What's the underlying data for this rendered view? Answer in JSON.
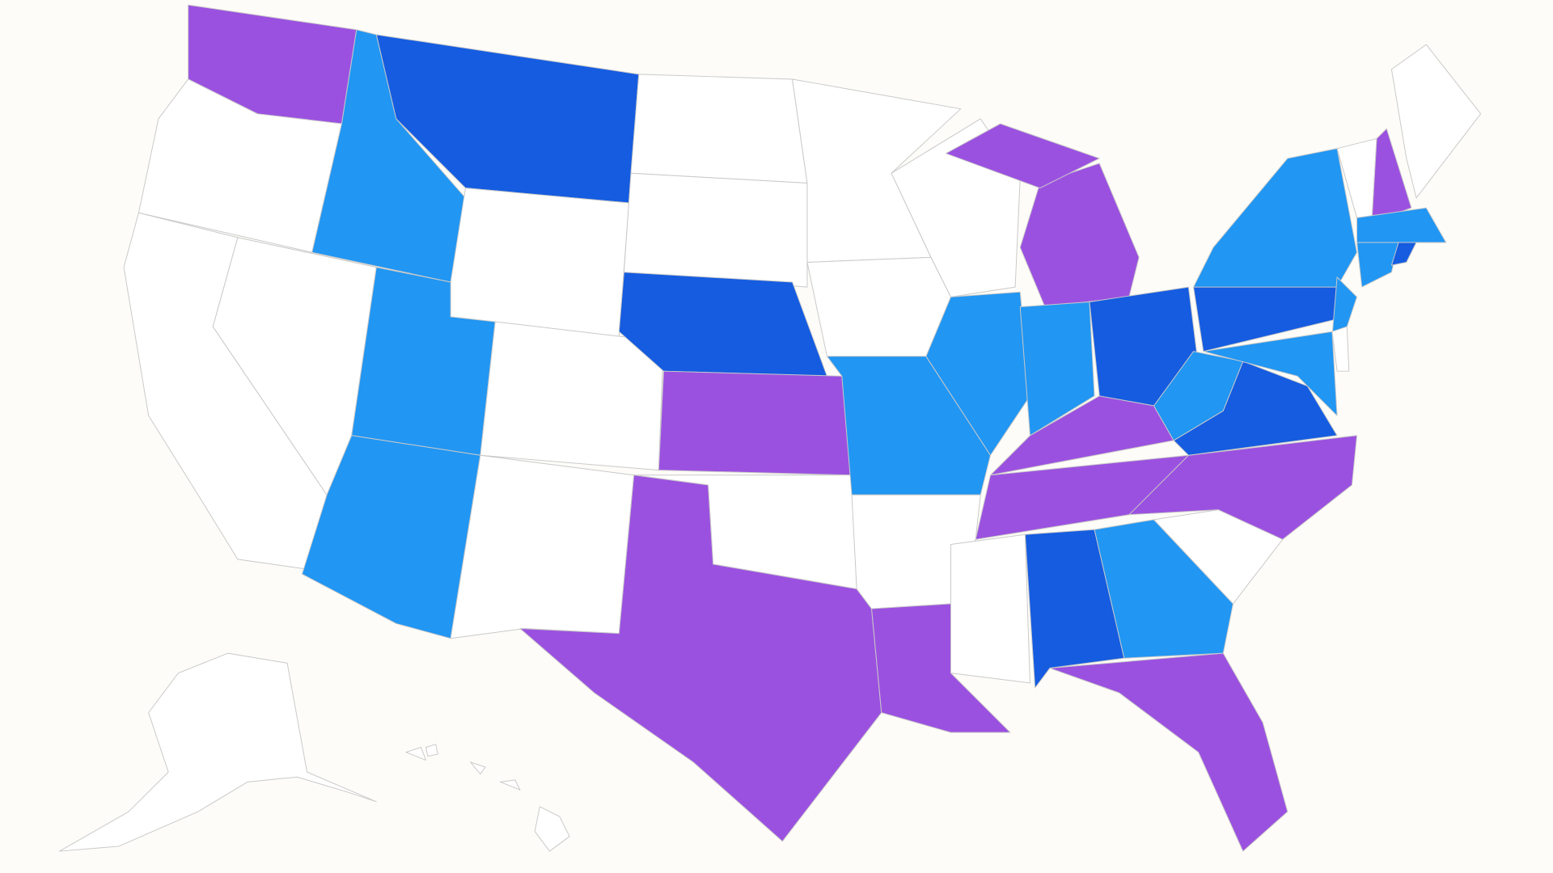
{
  "map": {
    "background": "#fdfcf8",
    "border_color": "#c9c9c9",
    "states": {
      "WA": "#9b51e0",
      "OR": "#ffffff",
      "CA": "#ffffff",
      "NV": "#ffffff",
      "ID": "#2196f3",
      "MT": "#155ce0",
      "WY": "#ffffff",
      "UT": "#2196f3",
      "AZ": "#2196f3",
      "CO": "#ffffff",
      "NM": "#ffffff",
      "ND": "#ffffff",
      "SD": "#ffffff",
      "NE": "#155ce0",
      "KS": "#9b51e0",
      "OK": "#ffffff",
      "TX": "#9b51e0",
      "MN": "#ffffff",
      "IA": "#ffffff",
      "MO": "#2196f3",
      "AR": "#ffffff",
      "LA": "#9b51e0",
      "WI": "#ffffff",
      "IL": "#2196f3",
      "MI": "#9b51e0",
      "IN": "#2196f3",
      "OH": "#155ce0",
      "KY": "#9b51e0",
      "TN": "#9b51e0",
      "MS": "#ffffff",
      "AL": "#155ce0",
      "GA": "#2196f3",
      "FL": "#9b51e0",
      "SC": "#ffffff",
      "NC": "#9b51e0",
      "VA": "#155ce0",
      "WV": "#2196f3",
      "PA": "#155ce0",
      "NY": "#2196f3",
      "NJ": "#2196f3",
      "MD": "#2196f3",
      "DE": "#ffffff",
      "VT": "#ffffff",
      "NH": "#9b51e0",
      "ME": "#ffffff",
      "MA": "#2196f3",
      "CT": "#2196f3",
      "RI": "#155ce0",
      "AK": "#ffffff",
      "HI": "#ffffff"
    }
  }
}
